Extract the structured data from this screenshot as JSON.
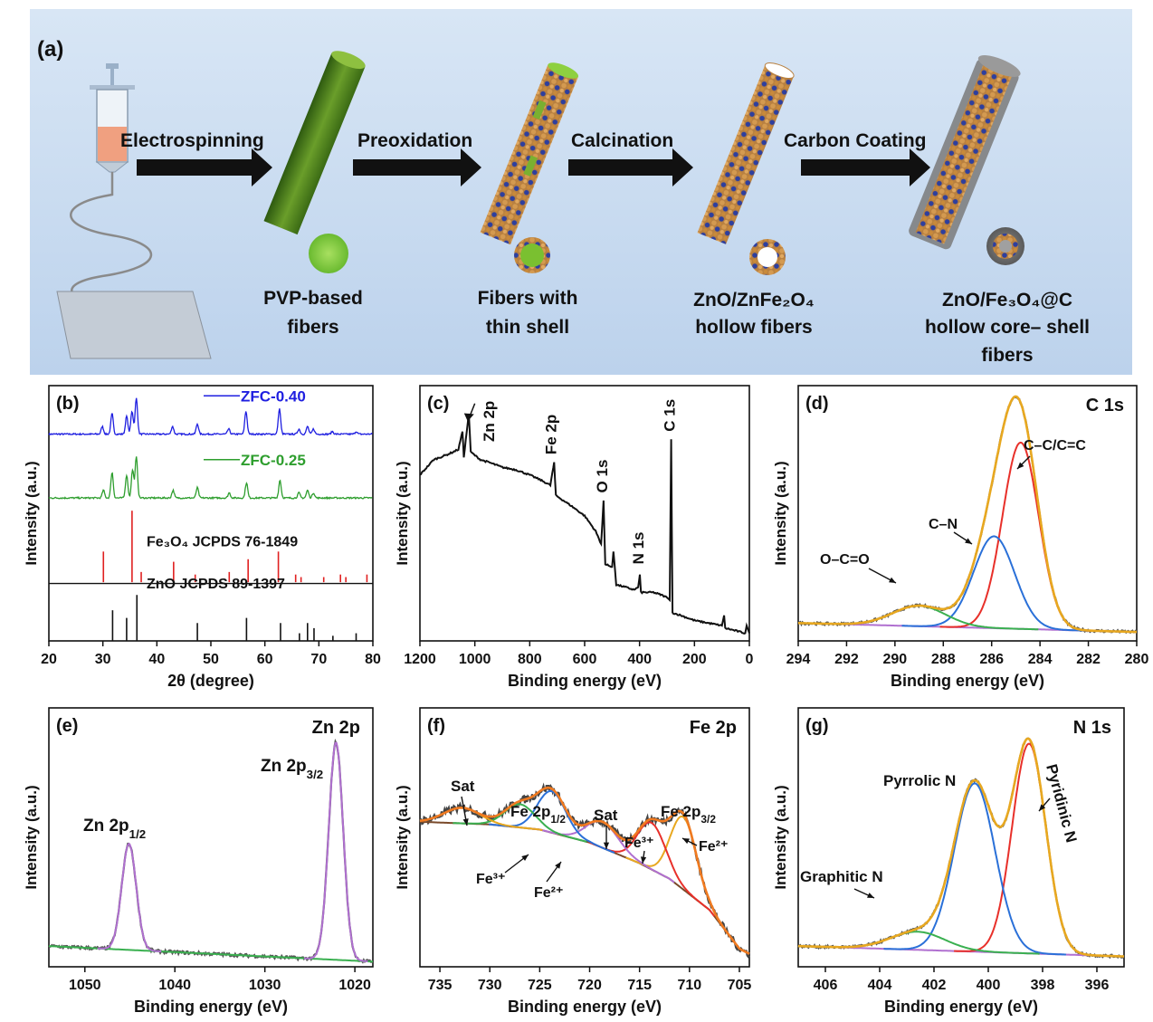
{
  "scheme": {
    "panel_label": "(a)",
    "steps": [
      "Electrospinning",
      "Preoxidation",
      "Calcination",
      "Carbon Coating"
    ],
    "products": [
      {
        "line1": "PVP-based",
        "line2": "fibers",
        "line3": ""
      },
      {
        "line1": "Fibers with",
        "line2": "thin shell",
        "line3": ""
      },
      {
        "line1": "ZnO/ZnFe₂O₄",
        "line2": "hollow fibers",
        "line3": ""
      },
      {
        "line1": "ZnO/Fe₃O₄@C",
        "line2": "hollow core– shell",
        "line3": "fibers"
      }
    ],
    "colors": {
      "background": "#cfe0f2",
      "arrow": "#111111",
      "fiber_green": "#4f7f1e",
      "particle_orange": "#c98a3a",
      "particle_blue": "#2e3f9e"
    }
  },
  "chart_data": [
    {
      "id": "b",
      "type": "line",
      "panel_label": "(b)",
      "xlabel": "2θ (degree)",
      "ylabel": "Intensity (a.u.)",
      "xlim": [
        20,
        80
      ],
      "xticks": [
        20,
        30,
        40,
        50,
        60,
        70,
        80
      ],
      "grid": false,
      "series": [
        {
          "name": "ZFC-0.40",
          "color": "#1f1fe0",
          "offset": 0.81,
          "peaks": [
            [
              29.9,
              0.03
            ],
            [
              31.7,
              0.08
            ],
            [
              34.4,
              0.07
            ],
            [
              35.4,
              0.09
            ],
            [
              36.2,
              0.14
            ],
            [
              42.9,
              0.03
            ],
            [
              47.5,
              0.04
            ],
            [
              53.3,
              0.02
            ],
            [
              56.5,
              0.09
            ],
            [
              62.7,
              0.1
            ],
            [
              66.3,
              0.02
            ],
            [
              67.9,
              0.03
            ],
            [
              69.0,
              0.02
            ],
            [
              72.5,
              0.01
            ],
            [
              76.9,
              0.01
            ]
          ]
        },
        {
          "name": "ZFC-0.25",
          "color": "#2e9e2e",
          "offset": 0.56,
          "peaks": [
            [
              30.1,
              0.03
            ],
            [
              31.7,
              0.1
            ],
            [
              34.4,
              0.09
            ],
            [
              35.5,
              0.11
            ],
            [
              36.2,
              0.16
            ],
            [
              43.0,
              0.03
            ],
            [
              47.5,
              0.04
            ],
            [
              53.4,
              0.02
            ],
            [
              56.6,
              0.06
            ],
            [
              62.8,
              0.07
            ],
            [
              66.3,
              0.02
            ],
            [
              67.9,
              0.03
            ],
            [
              69.0,
              0.02
            ]
          ]
        }
      ],
      "references": [
        {
          "name": "Fe₃O₄ JCPDS 76-1849",
          "color": "#e02020",
          "base": 0.23,
          "lines": [
            [
              30.1,
              0.12
            ],
            [
              35.4,
              0.28
            ],
            [
              37.1,
              0.04
            ],
            [
              43.1,
              0.08
            ],
            [
              47.1,
              0.03
            ],
            [
              53.4,
              0.04
            ],
            [
              56.9,
              0.09
            ],
            [
              62.5,
              0.12
            ],
            [
              65.7,
              0.03
            ],
            [
              66.7,
              0.02
            ],
            [
              70.9,
              0.02
            ],
            [
              74.0,
              0.03
            ],
            [
              75.0,
              0.02
            ],
            [
              78.9,
              0.03
            ]
          ]
        },
        {
          "name": "ZnO JCPDS  89-1397",
          "color": "#111111",
          "base": 0.0,
          "lines": [
            [
              31.8,
              0.12
            ],
            [
              34.4,
              0.09
            ],
            [
              36.3,
              0.18
            ],
            [
              47.5,
              0.07
            ],
            [
              56.6,
              0.09
            ],
            [
              62.9,
              0.07
            ],
            [
              66.4,
              0.03
            ],
            [
              67.9,
              0.07
            ],
            [
              69.1,
              0.05
            ],
            [
              72.6,
              0.02
            ],
            [
              76.9,
              0.03
            ]
          ]
        }
      ]
    },
    {
      "id": "c",
      "type": "line",
      "panel_label": "(c)",
      "xlabel": "Binding energy (eV)",
      "ylabel": "Intensity (a.u.)",
      "xlim": [
        1200,
        0
      ],
      "xticks": [
        1200,
        1000,
        800,
        600,
        400,
        200,
        0
      ],
      "reversed": true,
      "grid": false,
      "color": "#111111",
      "points": [
        [
          1200,
          0.65
        ],
        [
          1150,
          0.71
        ],
        [
          1100,
          0.73
        ],
        [
          1060,
          0.75
        ],
        [
          1045,
          0.82
        ],
        [
          1040,
          0.72
        ],
        [
          1022,
          0.89
        ],
        [
          1015,
          0.74
        ],
        [
          980,
          0.71
        ],
        [
          950,
          0.7
        ],
        [
          900,
          0.68
        ],
        [
          850,
          0.67
        ],
        [
          800,
          0.65
        ],
        [
          760,
          0.63
        ],
        [
          725,
          0.61
        ],
        [
          711,
          0.7
        ],
        [
          705,
          0.57
        ],
        [
          650,
          0.53
        ],
        [
          600,
          0.49
        ],
        [
          560,
          0.43
        ],
        [
          540,
          0.38
        ],
        [
          531,
          0.55
        ],
        [
          525,
          0.3
        ],
        [
          500,
          0.29
        ],
        [
          495,
          0.35
        ],
        [
          485,
          0.22
        ],
        [
          450,
          0.21
        ],
        [
          420,
          0.2
        ],
        [
          405,
          0.21
        ],
        [
          399,
          0.26
        ],
        [
          395,
          0.19
        ],
        [
          350,
          0.19
        ],
        [
          320,
          0.18
        ],
        [
          300,
          0.17
        ],
        [
          290,
          0.16
        ],
        [
          285,
          0.79
        ],
        [
          280,
          0.11
        ],
        [
          250,
          0.1
        ],
        [
          200,
          0.08
        ],
        [
          150,
          0.07
        ],
        [
          100,
          0.06
        ],
        [
          92,
          0.1
        ],
        [
          88,
          0.05
        ],
        [
          50,
          0.04
        ],
        [
          15,
          0.03
        ],
        [
          10,
          0.06
        ],
        [
          0,
          0.03
        ]
      ],
      "annotations": [
        {
          "text": "Zn 2p",
          "x": 930
        },
        {
          "text": "Fe 2p",
          "x": 711
        },
        {
          "text": "O 1s",
          "x": 531
        },
        {
          "text": "N 1s",
          "x": 399
        },
        {
          "text": "C 1s",
          "x": 285
        }
      ]
    },
    {
      "id": "d",
      "type": "line",
      "panel_label": "(d)",
      "title": "C 1s",
      "xlabel": "Binding energy (eV)",
      "ylabel": "Intensity (a.u.)",
      "xlim": [
        294,
        280
      ],
      "xticks": [
        294,
        292,
        290,
        288,
        286,
        284,
        282,
        280
      ],
      "reversed": true,
      "grid": false,
      "background": {
        "color": "#b070d0",
        "y_start": 0.07,
        "y_end": 0.035
      },
      "components": [
        {
          "label": "C–C/C=C",
          "color": "#e8302a",
          "center": 284.8,
          "height": 0.73,
          "width": 0.75
        },
        {
          "label": "C–N",
          "color": "#2a70d8",
          "center": 285.9,
          "height": 0.36,
          "width": 0.85
        },
        {
          "label": "O–C=O",
          "color": "#3ab050",
          "center": 289.0,
          "height": 0.08,
          "width": 1.1
        }
      ],
      "envelope_color": "#e8a820",
      "raw_color": "#555555"
    },
    {
      "id": "e",
      "type": "line",
      "panel_label": "(e)",
      "title": "Zn 2p",
      "xlabel": "Binding energy (eV)",
      "ylabel": "",
      "xlim": [
        1054,
        1018
      ],
      "xticks": [
        1050,
        1040,
        1030,
        1020
      ],
      "reversed": true,
      "grid": false,
      "background": {
        "color": "#3ab050",
        "y_start": 0.08,
        "y_end": 0.02
      },
      "components": [
        {
          "label": "Zn 2p1/2",
          "color": "#b070d0",
          "center": 1045.1,
          "height": 0.41,
          "width": 0.8
        },
        {
          "label": "Zn 2p3/2",
          "color": "#b070d0",
          "center": 1022.1,
          "height": 0.84,
          "width": 0.8
        }
      ],
      "raw_color": "#555555"
    },
    {
      "id": "f",
      "type": "line",
      "panel_label": "(f)",
      "title": "Fe 2p",
      "xlabel": "Binding energy (eV)",
      "ylabel": "Intensity (a.u.)",
      "xlim": [
        737,
        704
      ],
      "xticks": [
        735,
        730,
        725,
        720,
        715,
        710,
        705
      ],
      "reversed": true,
      "grid": false,
      "background": {
        "color": "#7a4a2a",
        "points": [
          [
            737,
            0.56
          ],
          [
            730,
            0.55
          ],
          [
            725,
            0.53
          ],
          [
            720,
            0.48
          ],
          [
            715,
            0.4
          ],
          [
            712,
            0.34
          ],
          [
            708,
            0.22
          ],
          [
            705,
            0.07
          ],
          [
            704,
            0.05
          ]
        ]
      },
      "components": [
        {
          "label": "Fe²⁺",
          "color": "#e8a820",
          "center": 710.6,
          "height": 0.28,
          "width": 1.3
        },
        {
          "label": "Fe³⁺",
          "color": "#e8302a",
          "center": 713.8,
          "height": 0.18,
          "width": 1.4
        },
        {
          "label": "Sat",
          "color": "#b070d0",
          "center": 718.7,
          "height": 0.1,
          "width": 1.6
        },
        {
          "label": "Fe 2p1/2 Fe²⁺",
          "color": "#2a70d8",
          "center": 723.8,
          "height": 0.16,
          "width": 1.4
        },
        {
          "label": "Fe 2p1/2 Fe³⁺",
          "color": "#3ab050",
          "center": 727.0,
          "height": 0.09,
          "width": 1.5
        },
        {
          "label": "Sat",
          "color": "#e8a820",
          "center": 732.8,
          "height": 0.06,
          "width": 1.8
        }
      ],
      "envelope_color": "#f07a20",
      "raw_color": "#444444",
      "annotations": [
        {
          "text": "Sat",
          "x": 733.0
        },
        {
          "text": "Fe 2p1/2",
          "x": 723.8
        },
        {
          "text": "Sat",
          "x": 718.7
        },
        {
          "text": "Fe 2p3/2",
          "x": 710.8
        },
        {
          "text": "Fe³⁺",
          "x": 727.0
        },
        {
          "text": "Fe²⁺",
          "x": 722.0
        },
        {
          "text": "Fe³⁺",
          "x": 713.8
        },
        {
          "text": "Fe²⁺",
          "x": 710.6
        }
      ]
    },
    {
      "id": "g",
      "type": "line",
      "panel_label": "(g)",
      "title": "N 1s",
      "xlabel": "Binding energy (eV)",
      "ylabel": "Intensity (a.u.)",
      "xlim": [
        407,
        395
      ],
      "xticks": [
        406,
        404,
        402,
        400,
        398,
        396
      ],
      "reversed": true,
      "grid": false,
      "background": {
        "color": "#b070d0",
        "y_start": 0.08,
        "y_end": 0.04
      },
      "components": [
        {
          "label": "Pyridinic N",
          "color": "#e8302a",
          "center": 398.5,
          "height": 0.81,
          "width": 0.62
        },
        {
          "label": "Pyrrolic N",
          "color": "#2a70d8",
          "center": 400.5,
          "height": 0.65,
          "width": 0.75
        },
        {
          "label": "Graphitic N",
          "color": "#3ab050",
          "center": 402.6,
          "height": 0.07,
          "width": 1.0
        }
      ],
      "envelope_color": "#e8a820",
      "raw_color": "#555555"
    }
  ]
}
